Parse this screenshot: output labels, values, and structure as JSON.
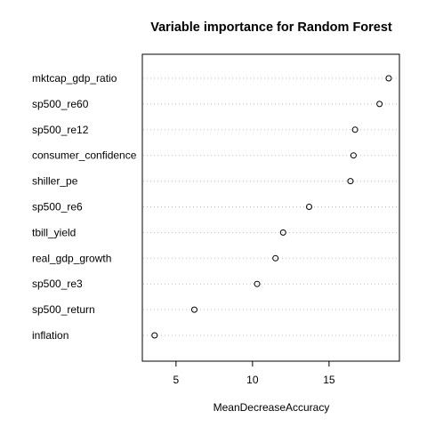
{
  "chart_data": {
    "type": "scatter",
    "title": "Variable importance for Random Forest",
    "xlabel": "MeanDecreaseAccuracy",
    "ylabel": "",
    "xlim": [
      2.8,
      19.6
    ],
    "xticks": [
      5,
      10,
      15
    ],
    "grid": "horizontal-dotted",
    "variables": [
      "mktcap_gdp_ratio",
      "sp500_re60",
      "sp500_re12",
      "consumer_confidence",
      "shiller_pe",
      "sp500_re6",
      "tbill_yield",
      "real_gdp_growth",
      "sp500_re3",
      "sp500_return",
      "inflation"
    ],
    "values": [
      18.9,
      18.3,
      16.7,
      16.6,
      16.4,
      13.7,
      12.0,
      11.5,
      10.3,
      6.2,
      3.6
    ]
  }
}
